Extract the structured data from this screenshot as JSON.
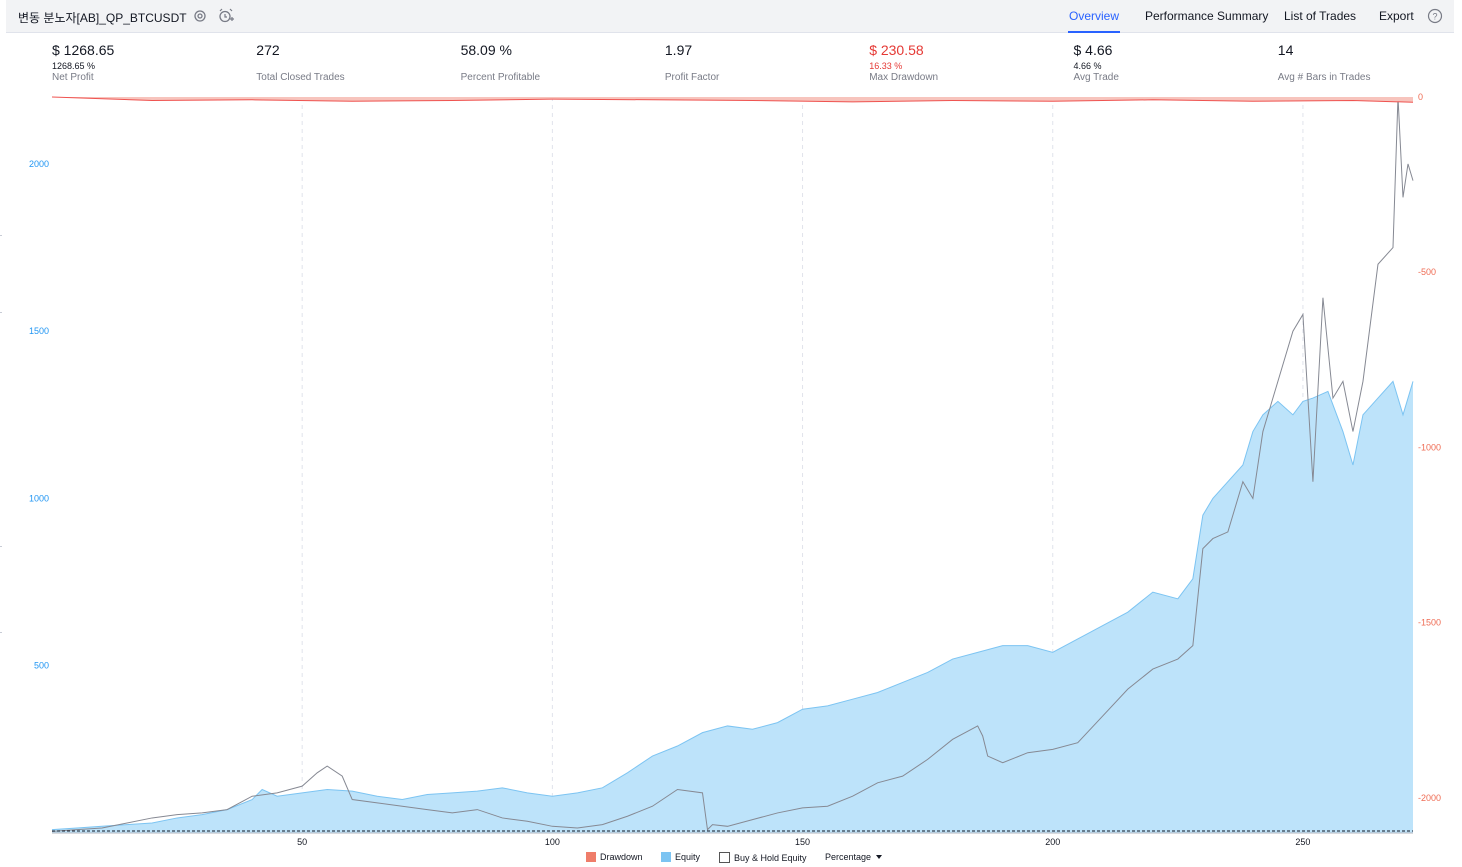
{
  "header": {
    "title": "변동 분노자[AB]_QP_BTCUSDT",
    "settings_icon": "gear-icon",
    "alert_icon": "alarm-clock-add-icon",
    "tabs": [
      {
        "label": "Overview",
        "active": true
      },
      {
        "label": "Performance Summary",
        "active": false
      },
      {
        "label": "List of Trades",
        "active": false
      },
      {
        "label": "Export",
        "active": false
      }
    ],
    "help_icon": "help-circle-icon",
    "help_label": "?"
  },
  "metrics": [
    {
      "value": "$ 1268.65",
      "sub": "1268.65 %",
      "label": "Net Profit",
      "negative": false
    },
    {
      "value": "272",
      "sub": "",
      "label": "Total Closed Trades",
      "negative": false
    },
    {
      "value": "58.09 %",
      "sub": "",
      "label": "Percent Profitable",
      "negative": false
    },
    {
      "value": "1.97",
      "sub": "",
      "label": "Profit Factor",
      "negative": false
    },
    {
      "value": "$ 230.58",
      "sub": "16.33 %",
      "label": "Max Drawdown",
      "negative": true
    },
    {
      "value": "$ 4.66",
      "sub": "4.66 %",
      "label": "Avg Trade",
      "negative": false
    },
    {
      "value": "14",
      "sub": "",
      "label": "Avg # Bars in Trades",
      "negative": false
    }
  ],
  "legend": {
    "drawdown": "Drawdown",
    "equity": "Equity",
    "buy_hold": "Buy & Hold Equity",
    "mode": "Percentage",
    "mode_icon": "caret-down-icon"
  },
  "colors": {
    "equity_fill": "#bde3fa",
    "equity_line": "#7cc4f2",
    "buy_hold_line": "#868993",
    "drawdown": "#ef5350",
    "left_axis": "#2196f3",
    "right_axis": "#ef6c54",
    "active_tab": "#2962ff"
  },
  "chart_data": {
    "type": "area",
    "x_range": [
      0,
      272
    ],
    "x_ticks": [
      "50",
      "100",
      "150",
      "200",
      "250"
    ],
    "left_axis_ticks": [
      "500",
      "1000",
      "1500",
      "2000"
    ],
    "right_axis_ticks": [
      "0",
      "-500",
      "-1000",
      "-1500",
      "-2000"
    ],
    "left_ylim": [
      0,
      2200
    ],
    "right_ylim": [
      -2100,
      0
    ],
    "grid": "vertical dashed at x ticks",
    "series": [
      {
        "name": "Equity",
        "axis": "left",
        "x": [
          0,
          5,
          10,
          15,
          20,
          25,
          30,
          35,
          40,
          42,
          45,
          50,
          55,
          60,
          65,
          70,
          75,
          80,
          85,
          90,
          95,
          100,
          105,
          110,
          115,
          120,
          125,
          130,
          135,
          140,
          145,
          150,
          155,
          160,
          165,
          170,
          175,
          180,
          185,
          190,
          195,
          200,
          205,
          210,
          215,
          220,
          225,
          228,
          230,
          232,
          235,
          238,
          240,
          242,
          245,
          248,
          250,
          252,
          255,
          258,
          260,
          262,
          265,
          268,
          270,
          272
        ],
        "y": [
          10,
          15,
          20,
          25,
          30,
          45,
          55,
          70,
          100,
          130,
          110,
          120,
          130,
          125,
          110,
          100,
          115,
          120,
          125,
          135,
          120,
          110,
          120,
          135,
          180,
          230,
          260,
          300,
          320,
          310,
          330,
          370,
          380,
          400,
          420,
          450,
          480,
          520,
          540,
          560,
          560,
          540,
          580,
          620,
          660,
          720,
          700,
          760,
          950,
          1000,
          1050,
          1100,
          1200,
          1250,
          1290,
          1250,
          1290,
          1300,
          1320,
          1200,
          1100,
          1250,
          1300,
          1350,
          1250,
          1350
        ]
      },
      {
        "name": "Buy & Hold Equity",
        "axis": "left",
        "x": [
          0,
          5,
          10,
          15,
          20,
          25,
          30,
          35,
          40,
          45,
          50,
          53,
          55,
          58,
          60,
          65,
          70,
          75,
          80,
          85,
          90,
          95,
          100,
          105,
          110,
          115,
          120,
          125,
          130,
          131,
          132,
          135,
          140,
          145,
          150,
          155,
          160,
          165,
          170,
          175,
          180,
          185,
          186,
          187,
          190,
          195,
          200,
          205,
          210,
          215,
          220,
          225,
          228,
          230,
          232,
          235,
          238,
          240,
          242,
          245,
          246,
          248,
          250,
          252,
          254,
          256,
          258,
          260,
          262,
          265,
          268,
          269,
          270,
          271,
          272
        ],
        "y": [
          5,
          10,
          15,
          30,
          45,
          55,
          60,
          70,
          110,
          120,
          140,
          180,
          200,
          170,
          100,
          90,
          80,
          70,
          60,
          70,
          45,
          35,
          20,
          15,
          25,
          50,
          80,
          130,
          120,
          10,
          25,
          20,
          40,
          60,
          75,
          80,
          110,
          150,
          170,
          220,
          280,
          320,
          290,
          230,
          210,
          240,
          250,
          270,
          350,
          430,
          490,
          520,
          560,
          850,
          880,
          900,
          1050,
          1000,
          1200,
          1350,
          1400,
          1500,
          1550,
          1050,
          1600,
          1300,
          1350,
          1200,
          1350,
          1700,
          1750,
          2200,
          1900,
          2000,
          1950
        ]
      },
      {
        "name": "Drawdown",
        "axis": "right",
        "x": [
          0,
          20,
          40,
          60,
          80,
          100,
          120,
          140,
          160,
          180,
          200,
          220,
          240,
          260,
          272
        ],
        "y": [
          0,
          -10,
          -8,
          -12,
          -10,
          -6,
          -8,
          -10,
          -14,
          -10,
          -12,
          -8,
          -12,
          -10,
          -15
        ]
      }
    ]
  }
}
